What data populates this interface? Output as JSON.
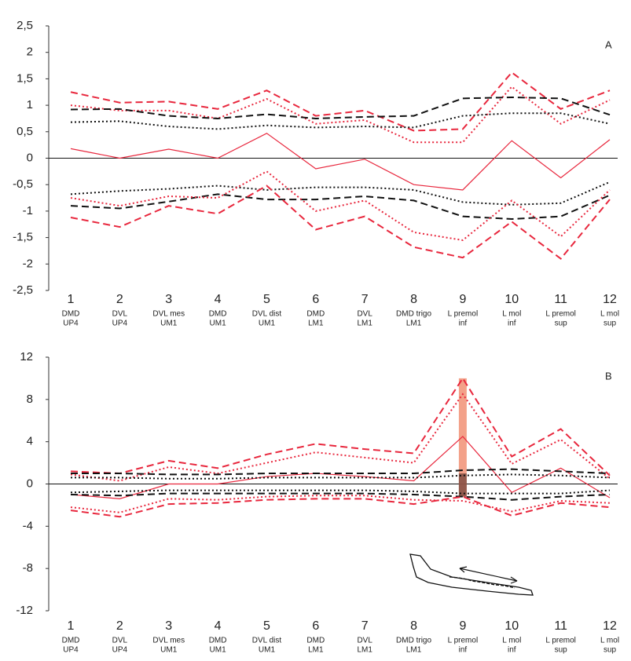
{
  "chart_data": [
    {
      "type": "line",
      "annotation": "A",
      "categories": [
        "1",
        "2",
        "3",
        "4",
        "5",
        "6",
        "7",
        "8",
        "9",
        "10",
        "11",
        "12"
      ],
      "category_descriptions": [
        [
          "DMD",
          "UP4"
        ],
        [
          "DVL",
          "UP4"
        ],
        [
          "DVL mes",
          "UM1"
        ],
        [
          "DMD",
          "UM1"
        ],
        [
          "DVL dist",
          "UM1"
        ],
        [
          "DMD",
          "LM1"
        ],
        [
          "DVL",
          "LM1"
        ],
        [
          "DMD trigo",
          "LM1"
        ],
        [
          "L premol",
          "inf"
        ],
        [
          "L mol",
          "inf"
        ],
        [
          "L premol",
          "sup"
        ],
        [
          "L mol",
          "sup"
        ]
      ],
      "ylim": [
        -2.5,
        2.5
      ],
      "yticks": [
        {
          "value": 2.5,
          "label": "2,5"
        },
        2,
        {
          "value": 1.5,
          "label": "1,5"
        },
        1,
        {
          "value": 0.5,
          "label": "0,5"
        },
        0,
        {
          "value": -0.5,
          "label": "-0,5"
        },
        -1,
        {
          "value": -1.5,
          "label": "-1,5"
        },
        -2,
        {
          "value": -2.5,
          "label": "-2,5"
        }
      ],
      "hline": 0,
      "series": [
        {
          "color": "#e8273d",
          "style": "solid",
          "values": [
            0.18,
            0,
            0.17,
            0,
            0.47,
            -0.2,
            -0.02,
            -0.5,
            -0.6,
            0.33,
            -0.37,
            0.35
          ]
        },
        {
          "color": "#e8273d",
          "style": "dashed",
          "values": [
            1.25,
            1.05,
            1.07,
            0.93,
            1.28,
            0.8,
            0.9,
            0.52,
            0.55,
            1.62,
            0.93,
            1.28
          ]
        },
        {
          "color": "#e8273d",
          "style": "dotted",
          "values": [
            1.0,
            0.9,
            0.9,
            0.75,
            1.12,
            0.65,
            0.72,
            0.3,
            0.3,
            1.35,
            0.65,
            1.1
          ]
        },
        {
          "color": "#111111",
          "style": "dashed",
          "values": [
            0.92,
            0.93,
            0.8,
            0.75,
            0.83,
            0.75,
            0.78,
            0.8,
            1.13,
            1.15,
            1.13,
            0.82
          ]
        },
        {
          "color": "#111111",
          "style": "dotted",
          "values": [
            0.68,
            0.7,
            0.6,
            0.55,
            0.62,
            0.58,
            0.6,
            0.58,
            0.8,
            0.85,
            0.85,
            0.65
          ]
        },
        {
          "color": "#111111",
          "style": "dotted",
          "values": [
            -0.68,
            -0.62,
            -0.58,
            -0.52,
            -0.6,
            -0.55,
            -0.55,
            -0.6,
            -0.83,
            -0.88,
            -0.85,
            -0.45
          ]
        },
        {
          "color": "#111111",
          "style": "dashed",
          "values": [
            -0.9,
            -0.95,
            -0.82,
            -0.68,
            -0.78,
            -0.78,
            -0.72,
            -0.8,
            -1.1,
            -1.15,
            -1.1,
            -0.7
          ]
        },
        {
          "color": "#e8273d",
          "style": "dotted",
          "values": [
            -0.75,
            -0.9,
            -0.72,
            -0.75,
            -0.25,
            -1.0,
            -0.8,
            -1.4,
            -1.55,
            -0.8,
            -1.48,
            -0.6
          ]
        },
        {
          "color": "#e8273d",
          "style": "dashed",
          "values": [
            -1.12,
            -1.3,
            -0.9,
            -1.05,
            -0.52,
            -1.35,
            -1.1,
            -1.68,
            -1.88,
            -1.2,
            -1.9,
            -0.78
          ]
        }
      ]
    },
    {
      "type": "line",
      "annotation": "B",
      "categories": [
        "1",
        "2",
        "3",
        "4",
        "5",
        "6",
        "7",
        "8",
        "9",
        "10",
        "11",
        "12"
      ],
      "category_descriptions": [
        [
          "DMD",
          "UP4"
        ],
        [
          "DVL",
          "UP4"
        ],
        [
          "DVL mes",
          "UM1"
        ],
        [
          "DMD",
          "UM1"
        ],
        [
          "DVL dist",
          "UM1"
        ],
        [
          "DMD",
          "LM1"
        ],
        [
          "DVL",
          "LM1"
        ],
        [
          "DMD trigo",
          "LM1"
        ],
        [
          "L premol",
          "inf"
        ],
        [
          "L mol",
          "inf"
        ],
        [
          "L premol",
          "sup"
        ],
        [
          "L mol",
          "sup"
        ]
      ],
      "ylim": [
        -12,
        12
      ],
      "yticks": [
        12,
        8,
        4,
        0,
        -4,
        -8,
        -12
      ],
      "hline": 0,
      "highlight": {
        "x": "9",
        "range": [
          -1.2,
          10
        ],
        "inner_range": [
          -1.2,
          1
        ],
        "color": "#f08a6c",
        "inner_color": "#7a4a40"
      },
      "series": [
        {
          "color": "#e8273d",
          "style": "solid",
          "values": [
            -1,
            -1.4,
            0,
            0,
            0.7,
            1,
            0.7,
            0.3,
            4.5,
            -0.8,
            1.5,
            -1.3
          ]
        },
        {
          "color": "#e8273d",
          "style": "dashed",
          "values": [
            1.2,
            1,
            2.2,
            1.5,
            2.8,
            3.8,
            3.3,
            2.9,
            10,
            2.6,
            5.2,
            0.8
          ]
        },
        {
          "color": "#e8273d",
          "style": "dotted",
          "values": [
            0.9,
            0.3,
            1.6,
            1,
            2,
            3,
            2.5,
            2,
            8.5,
            1.9,
            4.2,
            0.5
          ]
        },
        {
          "color": "#111111",
          "style": "dashed",
          "values": [
            1,
            1,
            0.9,
            0.9,
            1,
            1,
            1,
            1,
            1.3,
            1.4,
            1.2,
            1
          ]
        },
        {
          "color": "#111111",
          "style": "dotted",
          "values": [
            0.6,
            0.6,
            0.5,
            0.5,
            0.6,
            0.6,
            0.6,
            0.6,
            0.8,
            0.9,
            0.8,
            0.6
          ]
        },
        {
          "color": "#111111",
          "style": "dotted",
          "values": [
            -0.8,
            -0.7,
            -0.6,
            -0.6,
            -0.6,
            -0.6,
            -0.6,
            -0.7,
            -0.9,
            -0.9,
            -0.9,
            -0.6
          ]
        },
        {
          "color": "#111111",
          "style": "dashed",
          "values": [
            -1,
            -1.1,
            -0.9,
            -0.9,
            -0.9,
            -0.9,
            -0.9,
            -1,
            -1.2,
            -1.5,
            -1.2,
            -1
          ]
        },
        {
          "color": "#e8273d",
          "style": "dotted",
          "values": [
            -2.2,
            -2.7,
            -1.4,
            -1.5,
            -1.2,
            -1.1,
            -1.1,
            -1.5,
            -1.6,
            -2.6,
            -1.6,
            -1.8
          ]
        },
        {
          "color": "#e8273d",
          "style": "dashed",
          "values": [
            -2.5,
            -3.1,
            -1.9,
            -1.8,
            -1.5,
            -1.4,
            -1.4,
            -1.9,
            -1.2,
            -3,
            -1.8,
            -2.2
          ]
        }
      ]
    }
  ]
}
